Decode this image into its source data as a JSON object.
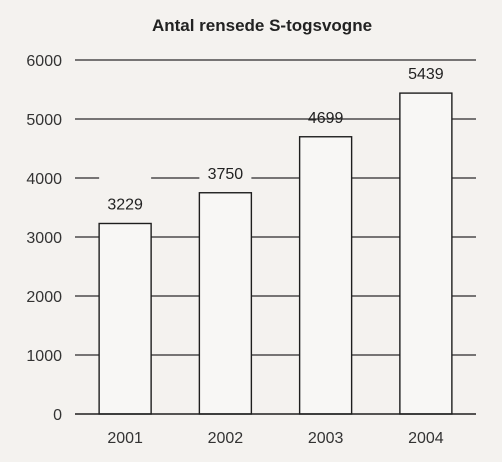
{
  "chart_data": {
    "type": "bar",
    "title": "Antal rensede S-togsvogne",
    "categories": [
      "2001",
      "2002",
      "2003",
      "2004"
    ],
    "values": [
      3229,
      3750,
      4699,
      5439
    ],
    "value_labels": [
      "3229",
      "3750",
      "4699",
      "5439"
    ],
    "highlight_index": 1,
    "highlight_color": "#e8361e",
    "label_color": "#222222",
    "ylim": [
      0,
      6000
    ],
    "yticks": [
      0,
      1000,
      2000,
      3000,
      4000,
      5000,
      6000
    ],
    "ytick_labels": [
      "0",
      "1000",
      "2000",
      "3000",
      "4000",
      "5000",
      "6000"
    ],
    "grid": true,
    "xlabel": "",
    "ylabel": ""
  }
}
